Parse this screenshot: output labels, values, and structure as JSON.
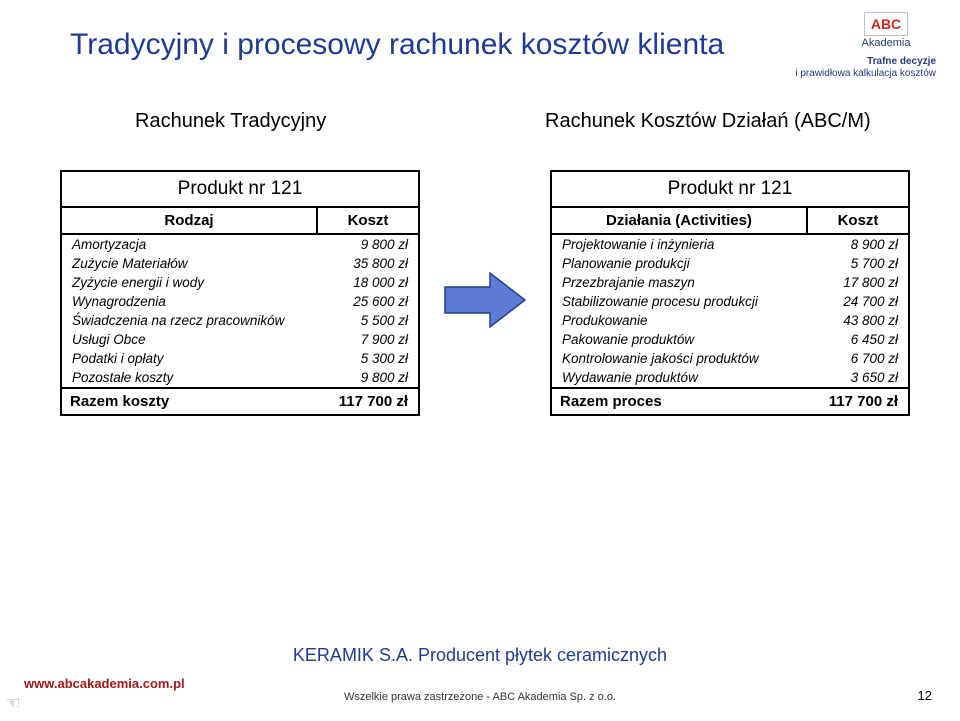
{
  "title": "Tradycyjny i procesowy rachunek kosztów klienta",
  "subtitle_left": "Rachunek Tradycyjny",
  "subtitle_right": "Rachunek Kosztów Działań (ABC/M)",
  "logo": {
    "main": "ABC",
    "sub": "Akademia"
  },
  "tagline": {
    "line1": "Trafne decyzje",
    "line2": "i prawidłowa kalkulacja kosztów"
  },
  "table_left": {
    "title": "Produkt nr 121",
    "head_a": "Rodzaj",
    "head_b": "Koszt",
    "rows": [
      {
        "a": "Amortyzacja",
        "b": "9 800 zł"
      },
      {
        "a": "Zużycie Materiałów",
        "b": "35 800 zł"
      },
      {
        "a": "Zyżycie energii i wody",
        "b": "18 000 zł"
      },
      {
        "a": "Wynagrodzenia",
        "b": "25 600 zł"
      },
      {
        "a": "Świadczenia na rzecz pracowników",
        "b": "5 500 zł"
      },
      {
        "a": "Usługi Obce",
        "b": "7 900 zł"
      },
      {
        "a": "Podatki i opłaty",
        "b": "5 300 zł"
      },
      {
        "a": "Pozostałe koszty",
        "b": "9 800 zł"
      }
    ],
    "total_a": "Razem koszty",
    "total_b": "117 700 zł"
  },
  "table_right": {
    "title": "Produkt nr 121",
    "head_a": "Działania (Activities)",
    "head_b": "Koszt",
    "rows": [
      {
        "a": "Projektowanie i inżynieria",
        "b": "8 900 zł"
      },
      {
        "a": "Planowanie produkcji",
        "b": "5 700 zł"
      },
      {
        "a": "Przezbrajanie maszyn",
        "b": "17 800 zł"
      },
      {
        "a": "Stabilizowanie procesu produkcji",
        "b": "24 700 zł"
      },
      {
        "a": "Produkowanie",
        "b": "43 800 zł"
      },
      {
        "a": "Pakowanie produktów",
        "b": "6 450 zł"
      },
      {
        "a": "Kontrolowanie jakości produktów",
        "b": "6 700 zł"
      },
      {
        "a": "Wydawanie produktów",
        "b": "3 650 zł"
      }
    ],
    "total_a": "Razem proces",
    "total_b": "117 700 zł"
  },
  "arrow": {
    "fill": "#5b7bd6",
    "stroke": "#2a3f82"
  },
  "footer": {
    "brand": "www.abcakademia.com.pl",
    "center": "KERAMIK S.A. Producent płytek ceramicznych",
    "rights": "Wszelkie prawa zastrzeżone - ABC Akademia Sp. z o.o.",
    "page": "12"
  }
}
